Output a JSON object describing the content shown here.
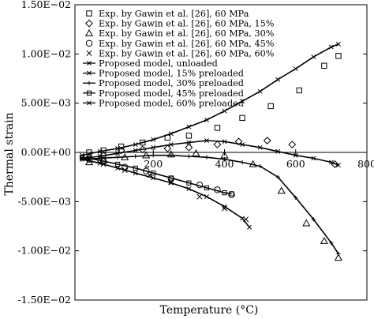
{
  "chart_data": {
    "type": "scatter",
    "xlabel": "Temperature (°C)",
    "ylabel": "Thermal strain",
    "xlim": [
      -20,
      800
    ],
    "ylim": [
      -0.015,
      0.015
    ],
    "x_ticks": [
      200,
      400,
      600,
      800
    ],
    "x_tick_labels": [
      "200",
      "400",
      "600",
      "800"
    ],
    "y_ticks": [
      0.015,
      0.01,
      0.005,
      0.0,
      -0.005,
      -0.01,
      -0.015
    ],
    "y_tick_labels": [
      "1.50E−02",
      "1.00E−02",
      "5.00E−03",
      "0.00E+00",
      "-5.00E−03",
      "-1.00E−02",
      "-1.50E−02"
    ],
    "grid": false,
    "legend_position": "top-left",
    "series": [
      {
        "name": "Exp. by Gawin et al. [26], 60 MPa",
        "kind": "points",
        "marker": "square",
        "x": [
          20,
          60,
          110,
          170,
          240,
          300,
          380,
          450,
          530,
          610,
          680,
          720
        ],
        "y": [
          0.0,
          0.0002,
          0.0006,
          0.001,
          0.0015,
          0.0017,
          0.0025,
          0.0035,
          0.0047,
          0.0063,
          0.0088,
          0.0098
        ]
      },
      {
        "name": "Exp. by Gawin et al. [26], 60 MPa, 15%",
        "kind": "points",
        "marker": "diamond",
        "x": [
          20,
          60,
          110,
          170,
          240,
          300,
          380,
          440,
          520,
          590,
          710
        ],
        "y": [
          -0.0005,
          -0.0003,
          0.0002,
          0.0003,
          0.0004,
          0.0005,
          0.0008,
          0.0011,
          0.0012,
          0.0008,
          -0.0012
        ]
      },
      {
        "name": "Exp. by Gawin et al. [26], 60 MPa, 30%",
        "kind": "points",
        "marker": "triangle",
        "x": [
          20,
          60,
          120,
          180,
          250,
          320,
          400,
          480,
          560,
          630,
          680,
          720
        ],
        "y": [
          -0.001,
          -0.0008,
          -0.0005,
          -0.0003,
          -0.0002,
          -0.0001,
          -0.0003,
          -0.0012,
          -0.0039,
          -0.0072,
          -0.009,
          -0.0107
        ]
      },
      {
        "name": "Exp. by Gawin et al. [26], 60 MPa, 45%",
        "kind": "points",
        "marker": "circle",
        "x": [
          20,
          60,
          120,
          180,
          250,
          330,
          380,
          420
        ],
        "y": [
          -0.0007,
          -0.0009,
          -0.0015,
          -0.0019,
          -0.0027,
          -0.0033,
          -0.0038,
          -0.0043
        ]
      },
      {
        "name": "Exp. by Gawin et al. [26], 60 MPa, 60%",
        "kind": "points",
        "marker": "x",
        "x": [
          20,
          60,
          120,
          190,
          250,
          330,
          400,
          460
        ],
        "y": [
          -0.0008,
          -0.0012,
          -0.0018,
          -0.0023,
          -0.003,
          -0.0045,
          -0.0057,
          -0.0068
        ]
      },
      {
        "name": "Proposed model, unloaded",
        "kind": "line",
        "marker": "x",
        "x": [
          0,
          50,
          100,
          150,
          200,
          250,
          300,
          350,
          400,
          450,
          500,
          550,
          600,
          650,
          700,
          720
        ],
        "y": [
          -0.0003,
          0.0001,
          0.0004,
          0.0008,
          0.0013,
          0.0019,
          0.0026,
          0.0033,
          0.0042,
          0.0052,
          0.0062,
          0.0074,
          0.0085,
          0.0097,
          0.0107,
          0.011
        ]
      },
      {
        "name": "Proposed model, 15% preloaded",
        "kind": "line",
        "marker": "x",
        "x": [
          0,
          50,
          100,
          150,
          200,
          250,
          300,
          350,
          400,
          450,
          500,
          550,
          600,
          650,
          700,
          720
        ],
        "y": [
          -0.0006,
          -0.0004,
          -0.0001,
          0.0002,
          0.0005,
          0.0008,
          0.001,
          0.0012,
          0.0011,
          0.0008,
          0.0005,
          0.0001,
          -0.0003,
          -0.0006,
          -0.001,
          -0.0013
        ]
      },
      {
        "name": "Proposed model, 30% preloaded",
        "kind": "line",
        "marker": "plus",
        "x": [
          0,
          50,
          100,
          150,
          200,
          250,
          300,
          350,
          400,
          450,
          500,
          550,
          600,
          650,
          700,
          720
        ],
        "y": [
          -0.0007,
          -0.0006,
          -0.0005,
          -0.0004,
          -0.0003,
          -0.0003,
          -0.0004,
          -0.0005,
          -0.0007,
          -0.001,
          -0.0014,
          -0.0025,
          -0.0046,
          -0.0068,
          -0.0092,
          -0.0103
        ]
      },
      {
        "name": "Proposed model, 45% preloaded",
        "kind": "line",
        "marker": "square",
        "x": [
          0,
          50,
          100,
          150,
          200,
          250,
          300,
          350,
          400,
          420
        ],
        "y": [
          -0.0005,
          -0.0008,
          -0.0012,
          -0.0016,
          -0.0021,
          -0.0026,
          -0.0031,
          -0.0036,
          -0.0041,
          -0.0042
        ]
      },
      {
        "name": "Proposed model, 60% preloaded",
        "kind": "line",
        "marker": "x",
        "x": [
          0,
          50,
          100,
          150,
          200,
          250,
          300,
          350,
          400,
          450,
          470
        ],
        "y": [
          -0.0007,
          -0.0011,
          -0.0016,
          -0.0021,
          -0.0026,
          -0.0031,
          -0.0037,
          -0.0045,
          -0.0055,
          -0.0067,
          -0.0076
        ]
      }
    ]
  }
}
